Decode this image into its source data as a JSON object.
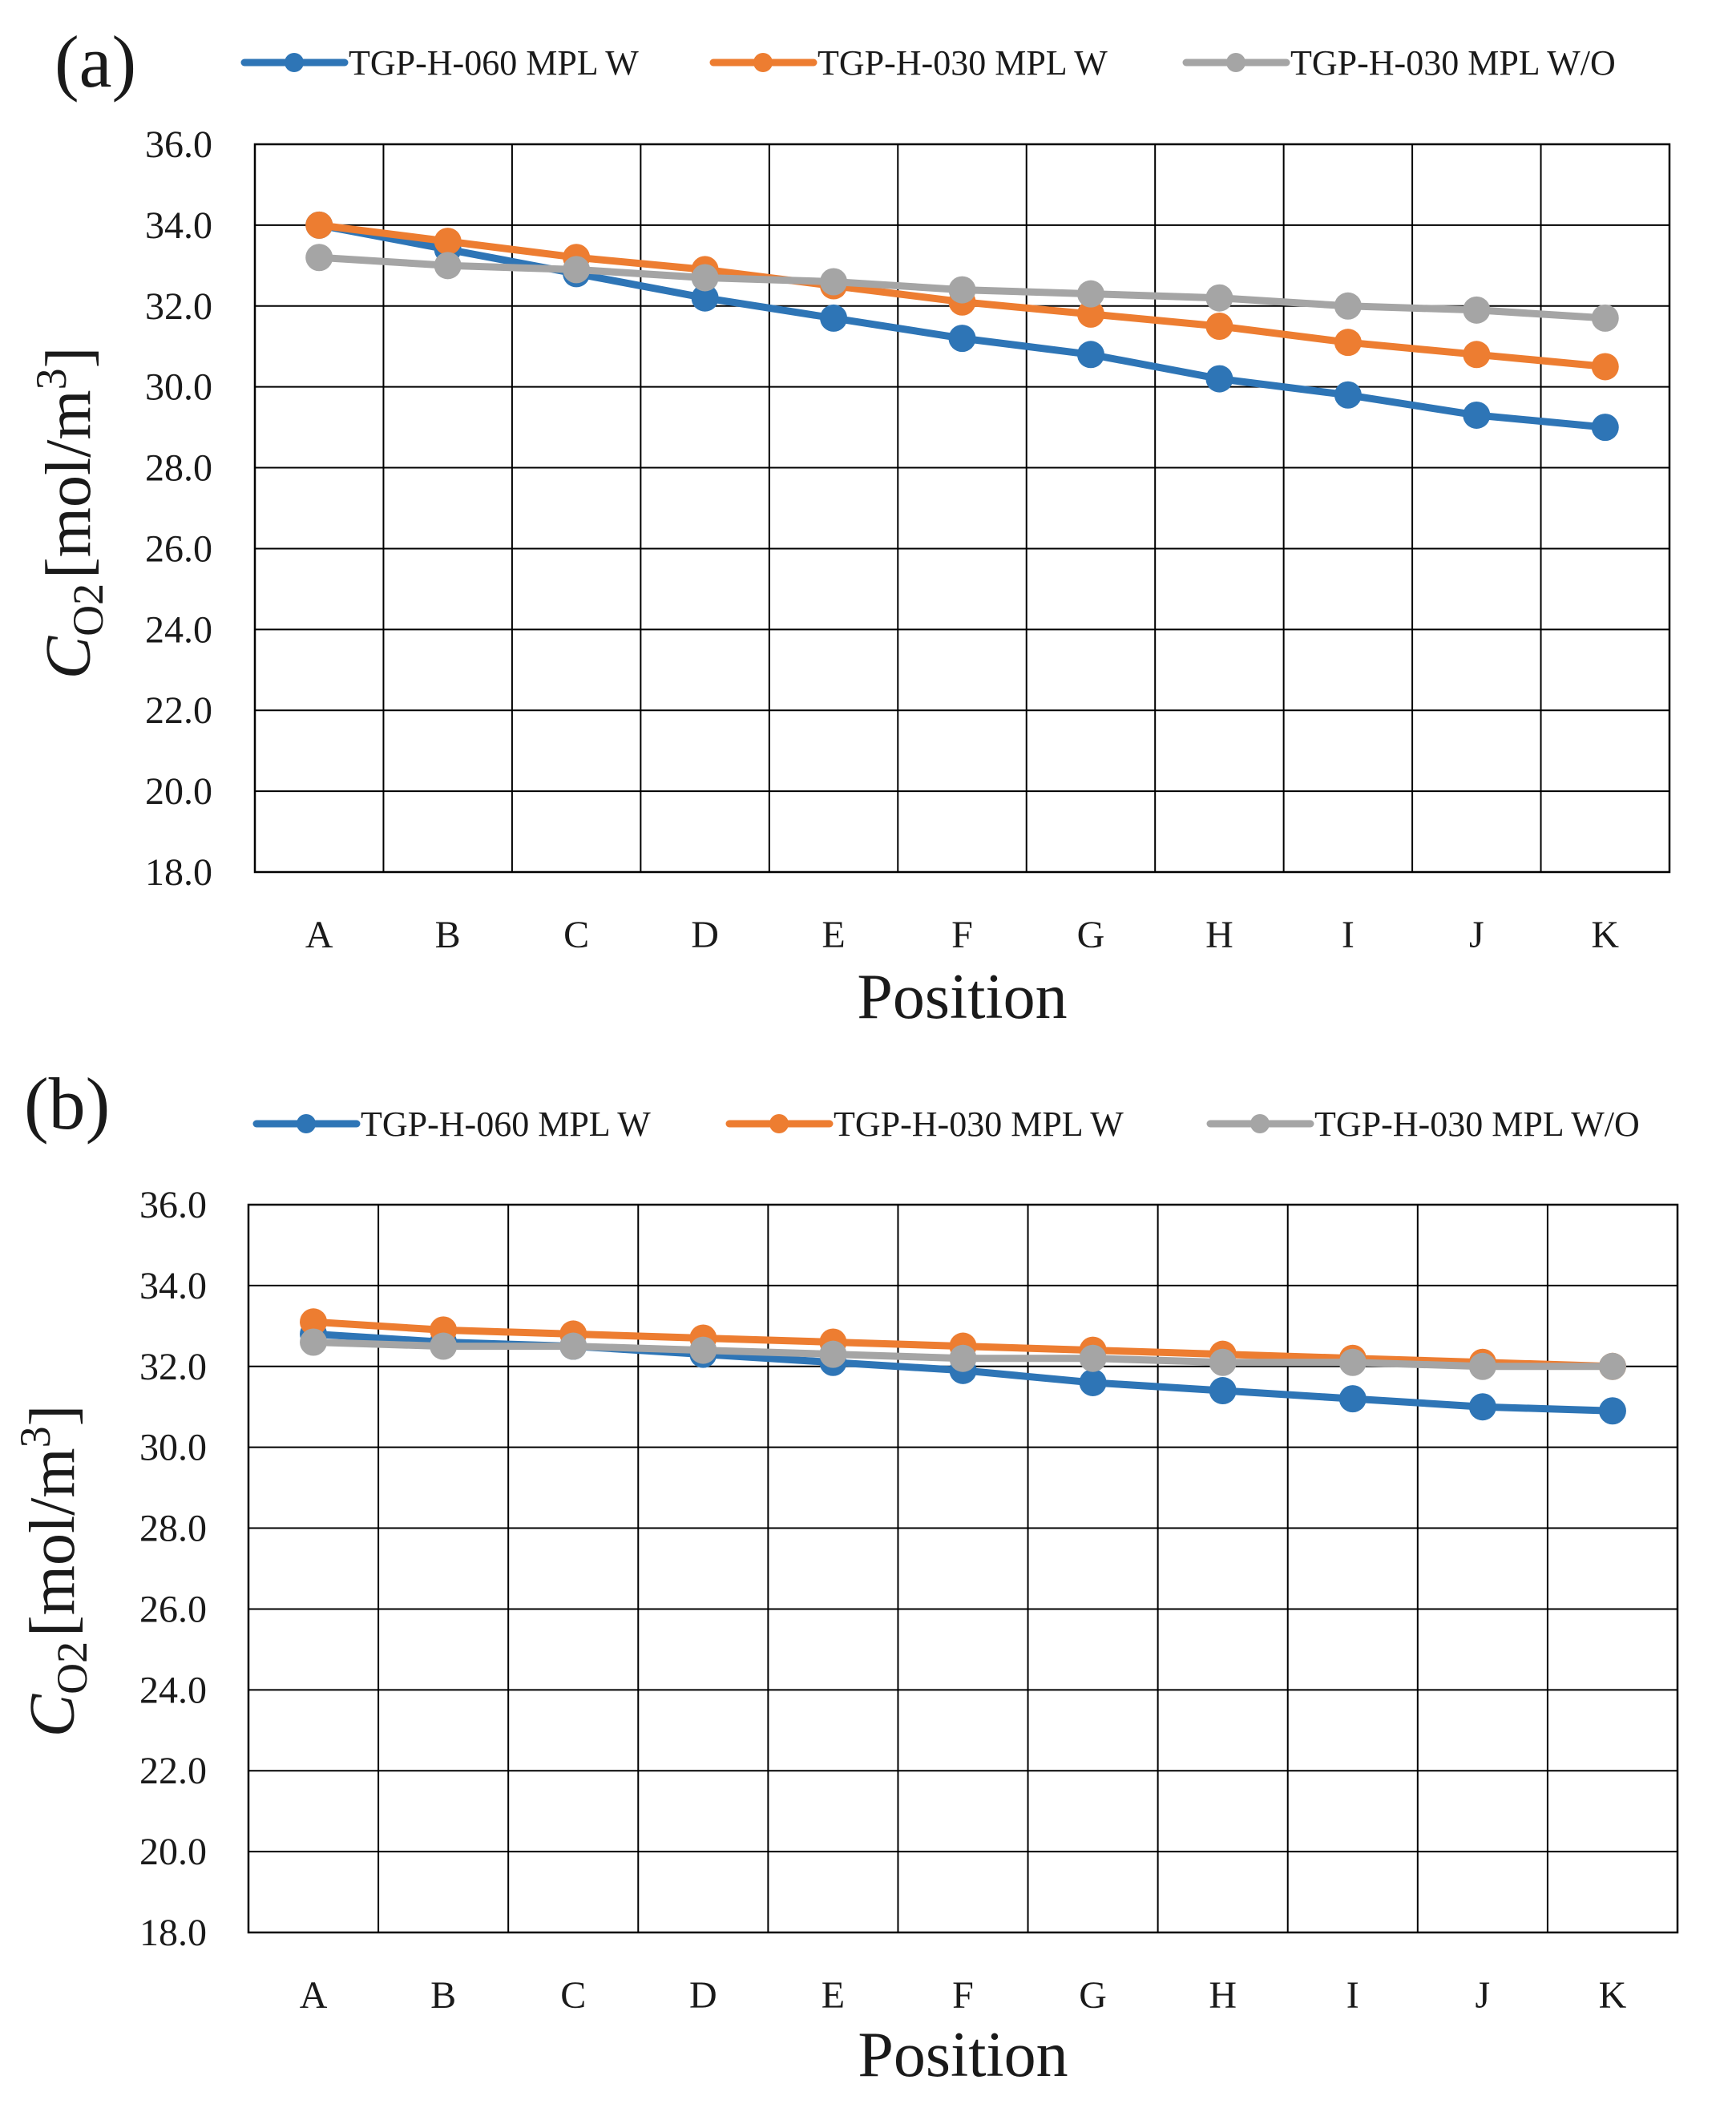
{
  "colors": {
    "s1": "#2e75b6",
    "s2": "#ed7d31",
    "s3": "#a5a5a5"
  },
  "chart_data": [
    {
      "type": "line",
      "panel_label": "(a)",
      "categories": [
        "A",
        "B",
        "C",
        "D",
        "E",
        "F",
        "G",
        "H",
        "I",
        "J",
        "K"
      ],
      "xlabel": "Position",
      "ylabel_main": "C",
      "ylabel_sub": "O2",
      "ylabel_unit": "[mol/m",
      "ylabel_sup": "3",
      "ylabel_close": "]",
      "ylim": [
        18.0,
        36.0
      ],
      "yticks": [
        "18.0",
        "20.0",
        "22.0",
        "24.0",
        "26.0",
        "28.0",
        "30.0",
        "32.0",
        "34.0",
        "36.0"
      ],
      "grid": true,
      "legend": "top",
      "series": [
        {
          "name": "TGP-H-060 MPL W",
          "color": "#2e75b6",
          "values": [
            34.0,
            33.4,
            32.8,
            32.2,
            31.7,
            31.2,
            30.8,
            30.2,
            29.8,
            29.3,
            29.0
          ]
        },
        {
          "name": "TGP-H-030 MPL W",
          "color": "#ed7d31",
          "values": [
            34.0,
            33.6,
            33.2,
            32.9,
            32.5,
            32.1,
            31.8,
            31.5,
            31.1,
            30.8,
            30.5
          ]
        },
        {
          "name": "TGP-H-030 MPL W/O",
          "color": "#a5a5a5",
          "values": [
            33.2,
            33.0,
            32.9,
            32.7,
            32.6,
            32.4,
            32.3,
            32.2,
            32.0,
            31.9,
            31.7
          ]
        }
      ]
    },
    {
      "type": "line",
      "panel_label": "(b)",
      "categories": [
        "A",
        "B",
        "C",
        "D",
        "E",
        "F",
        "G",
        "H",
        "I",
        "J",
        "K"
      ],
      "xlabel": "Position",
      "ylabel_main": "C",
      "ylabel_sub": "O2",
      "ylabel_unit": "[mol/m",
      "ylabel_sup": "3",
      "ylabel_close": "]",
      "ylim": [
        18.0,
        36.0
      ],
      "yticks": [
        "18.0",
        "20.0",
        "22.0",
        "24.0",
        "26.0",
        "28.0",
        "30.0",
        "32.0",
        "34.0",
        "36.0"
      ],
      "grid": true,
      "legend": "top",
      "series": [
        {
          "name": "TGP-H-060 MPL W",
          "color": "#2e75b6",
          "values": [
            32.8,
            32.6,
            32.5,
            32.3,
            32.1,
            31.9,
            31.6,
            31.4,
            31.2,
            31.0,
            30.9
          ]
        },
        {
          "name": "TGP-H-030 MPL W",
          "color": "#ed7d31",
          "values": [
            33.1,
            32.9,
            32.8,
            32.7,
            32.6,
            32.5,
            32.4,
            32.3,
            32.2,
            32.1,
            32.0
          ]
        },
        {
          "name": "TGP-H-030 MPL W/O",
          "color": "#a5a5a5",
          "values": [
            32.6,
            32.5,
            32.5,
            32.4,
            32.3,
            32.2,
            32.2,
            32.1,
            32.1,
            32.0,
            32.0
          ]
        }
      ]
    }
  ]
}
